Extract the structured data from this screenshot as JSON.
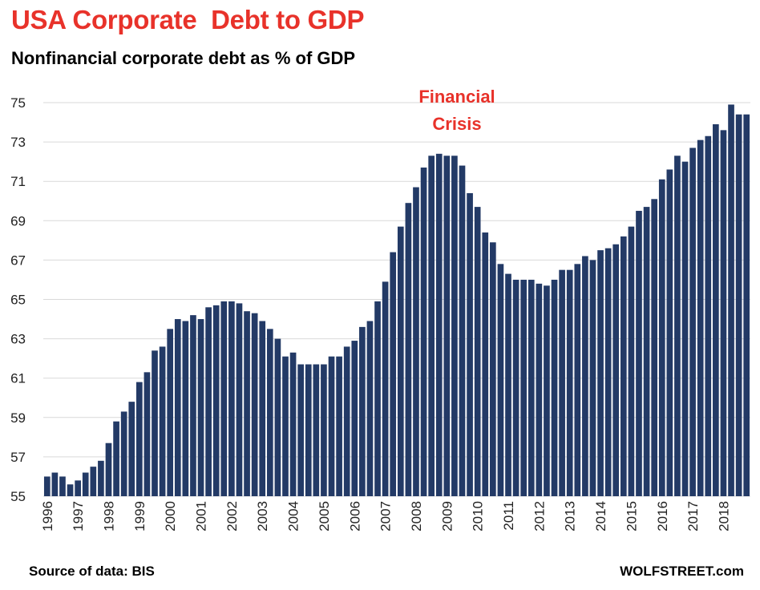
{
  "title": "USA Corporate  Debt to GDP",
  "subtitle": "Nonfinancial corporate debt as % of GDP",
  "annotation": {
    "line1": "Financial",
    "line2": "Crisis"
  },
  "footer": {
    "source": "Source of data: BIS",
    "brand": "WOLFSTREET.com"
  },
  "colors": {
    "bar": "#233a66",
    "title": "#e8322a",
    "grid": "#d9d9d9"
  },
  "chart_data": {
    "type": "bar",
    "title": "USA Corporate  Debt to GDP",
    "subtitle": "Nonfinancial corporate debt as % of GDP",
    "xlabel": "",
    "ylabel": "",
    "ylim": [
      55,
      75
    ],
    "yticks": [
      55,
      57,
      59,
      61,
      63,
      65,
      67,
      69,
      71,
      73,
      75
    ],
    "year_labels": [
      "1996",
      "1997",
      "1998",
      "1999",
      "2000",
      "2001",
      "2002",
      "2003",
      "2004",
      "2005",
      "2006",
      "2007",
      "2008",
      "2009",
      "2010",
      "2011",
      "2012",
      "2013",
      "2014",
      "2015",
      "2016",
      "2017",
      "2018"
    ],
    "grid": true,
    "annotations": [
      {
        "text": "Financial Crisis",
        "near": "2008-2009 peak"
      }
    ],
    "series": [
      {
        "name": "Nonfinancial corporate debt as % of GDP",
        "values": [
          56.0,
          56.2,
          56.0,
          55.6,
          55.8,
          56.2,
          56.5,
          56.8,
          57.7,
          58.8,
          59.3,
          59.8,
          60.8,
          61.3,
          62.4,
          62.6,
          63.5,
          64.0,
          63.9,
          64.2,
          64.0,
          64.6,
          64.7,
          64.9,
          64.9,
          64.8,
          64.4,
          64.3,
          63.9,
          63.5,
          63.0,
          62.1,
          62.3,
          61.7,
          61.7,
          61.7,
          61.7,
          62.1,
          62.1,
          62.6,
          62.9,
          63.6,
          63.9,
          64.9,
          65.9,
          67.4,
          68.7,
          69.9,
          70.7,
          71.7,
          72.3,
          72.4,
          72.3,
          72.3,
          71.8,
          70.4,
          69.7,
          68.4,
          67.9,
          66.8,
          66.3,
          66.0,
          66.0,
          66.0,
          65.8,
          65.7,
          66.0,
          66.5,
          66.5,
          66.8,
          67.2,
          67.0,
          67.5,
          67.6,
          67.8,
          68.2,
          68.7,
          69.5,
          69.7,
          70.1,
          71.1,
          71.6,
          72.3,
          72.0,
          72.7,
          73.1,
          73.3,
          73.9,
          73.6,
          74.9,
          74.4,
          74.4
        ]
      }
    ]
  }
}
